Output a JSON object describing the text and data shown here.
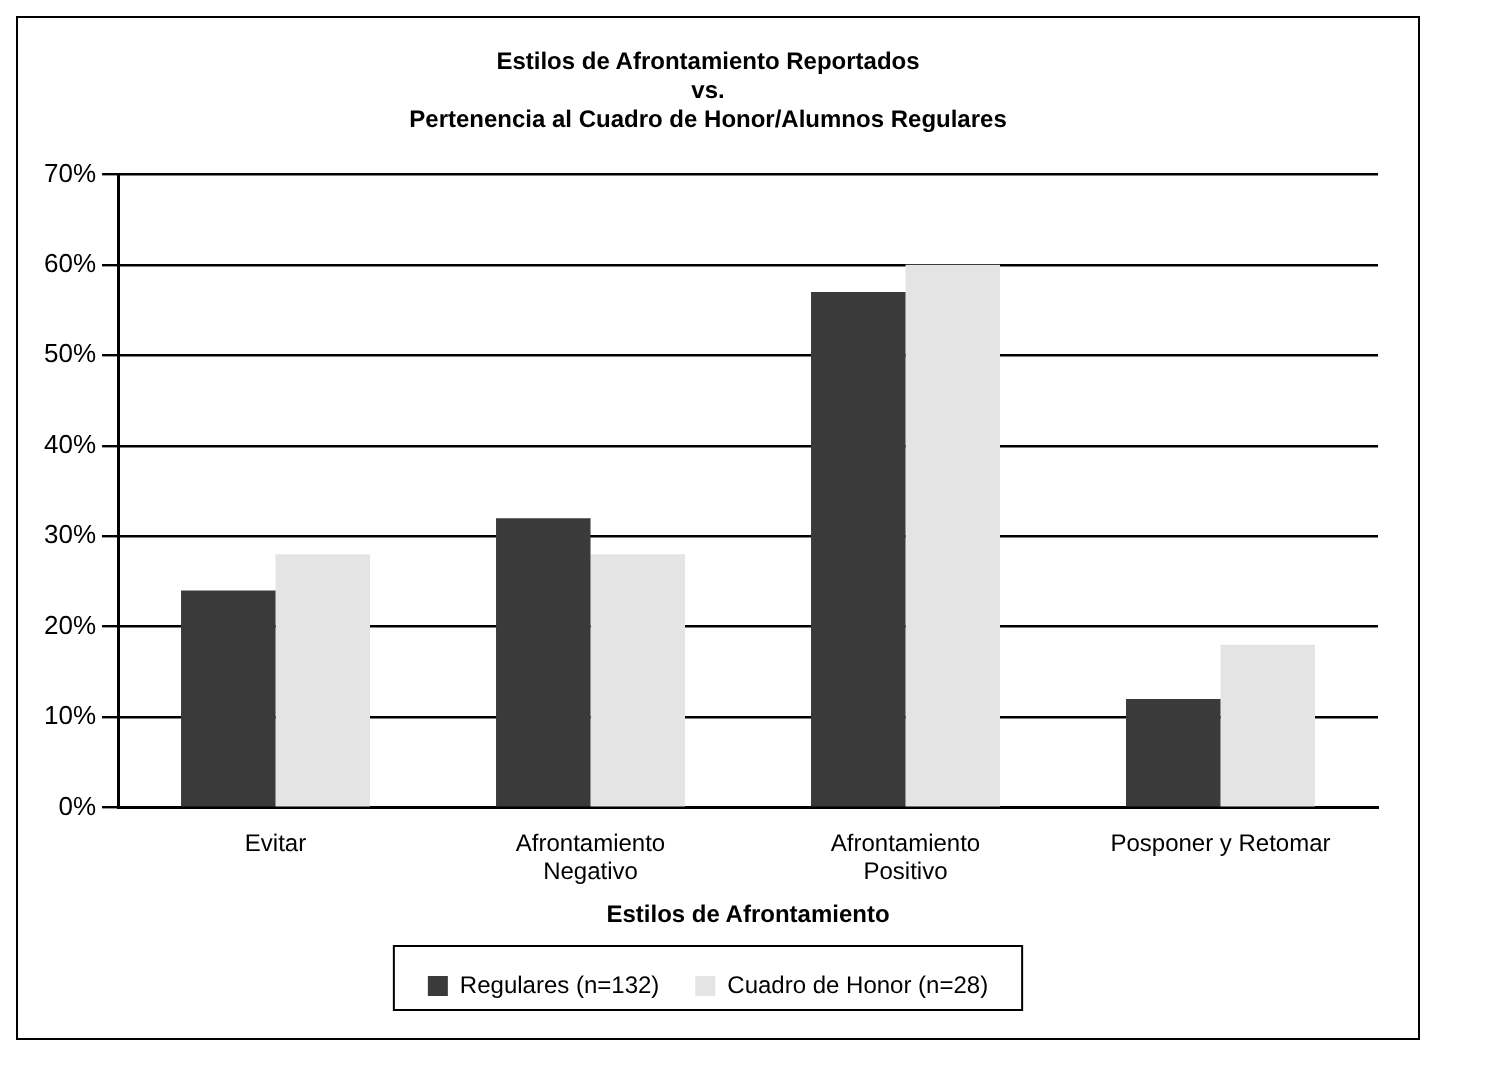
{
  "chart_data": {
    "type": "bar",
    "title": [
      "Estilos de Afrontamiento Reportados",
      "vs.",
      "Pertenencia al Cuadro de Honor/Alumnos Regulares"
    ],
    "xlabel": "Estilos de Afrontamiento",
    "categories": [
      [
        "Evitar"
      ],
      [
        "Afrontamiento",
        "Negativo"
      ],
      [
        "Afrontamiento",
        "Positivo"
      ],
      [
        "Posponer y Retomar"
      ]
    ],
    "series": [
      {
        "name": "Regulares (n=132)",
        "color": "#3a3a3a",
        "values": [
          0.24,
          0.32,
          0.57,
          0.12
        ]
      },
      {
        "name": "Cuadro de Honor (n=28)",
        "color": "#e4e4e4",
        "values": [
          0.28,
          0.28,
          0.6,
          0.18
        ]
      }
    ],
    "ylim": [
      0,
      0.7
    ],
    "yticks": [
      {
        "value": 0,
        "label": "0%"
      },
      {
        "value": 0.1,
        "label": "10%"
      },
      {
        "value": 0.2,
        "label": "20%"
      },
      {
        "value": 0.3,
        "label": "30%"
      },
      {
        "value": 0.4,
        "label": "40%"
      },
      {
        "value": 0.5,
        "label": "50%"
      },
      {
        "value": 0.6,
        "label": "60%"
      },
      {
        "value": 0.7,
        "label": "70%"
      }
    ],
    "grid": "y",
    "legend": "bottom"
  }
}
